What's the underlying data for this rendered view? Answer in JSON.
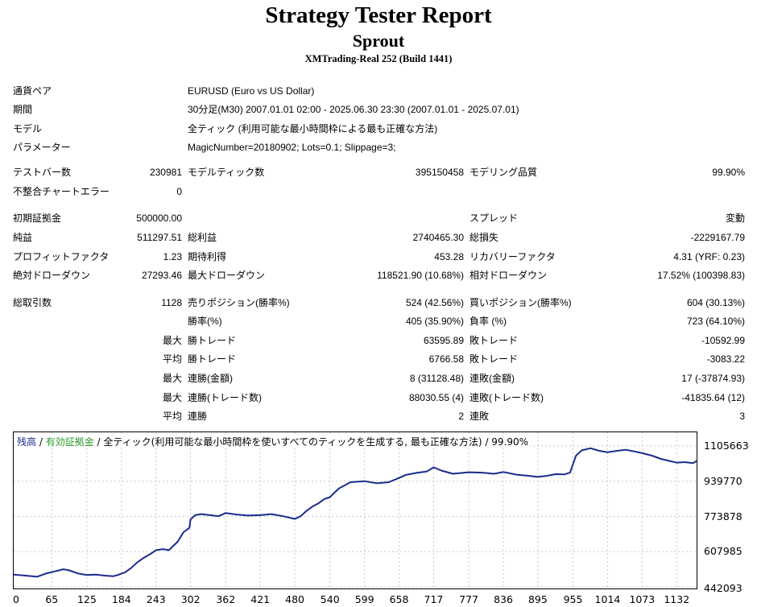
{
  "header": {
    "title": "Strategy Tester Report",
    "ea_name": "Sprout",
    "server": "XMTrading-Real 252 (Build 1441)"
  },
  "info": {
    "pair_label": "通貨ペア",
    "pair_value": "EURUSD (Euro vs US Dollar)",
    "period_label": "期間",
    "period_value": "30分足(M30) 2007.01.01 02:00 - 2025.06.30 23:30 (2007.01.01 - 2025.07.01)",
    "model_label": "モデル",
    "model_value": "全ティック (利用可能な最小時間枠による最も正確な方法)",
    "params_label": "パラメーター",
    "params_value": "MagicNumber=20180902; Lots=0.1; Slippage=3;"
  },
  "stats": {
    "test_bars_label": "テストバー数",
    "test_bars_value": "230981",
    "model_ticks_label": "モデルティック数",
    "model_ticks_value": "395150458",
    "model_quality_label": "モデリング品質",
    "model_quality_value": "99.90%",
    "mismatch_label": "不整合チャートエラー",
    "mismatch_value": "0",
    "initial_deposit_label": "初期証拠金",
    "initial_deposit_value": "500000.00",
    "spread_label": "スプレッド",
    "spread_value": "変動",
    "net_profit_label": "純益",
    "net_profit_value": "511297.51",
    "gross_profit_label": "総利益",
    "gross_profit_value": "2740465.30",
    "gross_loss_label": "総損失",
    "gross_loss_value": "-2229167.79",
    "profit_factor_label": "プロフィットファクタ",
    "profit_factor_value": "1.23",
    "expected_payoff_label": "期待利得",
    "expected_payoff_value": "453.28",
    "recovery_factor_label": "リカバリーファクタ",
    "recovery_factor_value": "4.31 (YRF: 0.23)",
    "abs_dd_label": "絶対ドローダウン",
    "abs_dd_value": "27293.46",
    "max_dd_label": "最大ドローダウン",
    "max_dd_value": "118521.90 (10.68%)",
    "rel_dd_label": "相対ドローダウン",
    "rel_dd_value": "17.52% (100398.83)",
    "total_trades_label": "総取引数",
    "total_trades_value": "1128",
    "short_label": "売りポジション(勝率%)",
    "short_value": "524 (42.56%)",
    "long_label": "買いポジション(勝率%)",
    "long_value": "604 (30.13%)",
    "win_rate_label": "勝率(%)",
    "win_rate_value": "405 (35.90%)",
    "loss_rate_label": "負率 (%)",
    "loss_rate_value": "723 (64.10%)",
    "max_prefix": "最大",
    "avg_prefix": "平均",
    "largest_win_label": "勝トレード",
    "largest_win_value": "63595.89",
    "largest_loss_label": "敗トレード",
    "largest_loss_value": "-10592.99",
    "avg_win_label": "勝トレード",
    "avg_win_value": "6766.58",
    "avg_loss_label": "敗トレード",
    "avg_loss_value": "-3083.22",
    "max_consec_wins_amt_label": "連勝(金額)",
    "max_consec_wins_amt_value": "8 (31128.48)",
    "max_consec_losses_amt_label": "連敗(金額)",
    "max_consec_losses_amt_value": "17 (-37874.93)",
    "max_consec_profit_label": "連勝(トレード数)",
    "max_consec_profit_value": "88030.55 (4)",
    "max_consec_loss_label": "連敗(トレード数)",
    "max_consec_loss_value": "-41835.64 (12)",
    "avg_consec_wins_label": "連勝",
    "avg_consec_wins_value": "2",
    "avg_consec_losses_label": "連敗",
    "avg_consec_losses_value": "3"
  },
  "chart_data": {
    "type": "line",
    "legend": {
      "balance": "残高",
      "equity": "有効証拠金",
      "description": "全ティック(利用可能な最小時間枠を使いすべてのティックを生成する, 最も正確な方法)",
      "quality": "99.90%"
    },
    "colors": {
      "balance": "#1a2a8c",
      "equity": "#2a9a2a",
      "grid": "#c8c8c8"
    },
    "x_ticks": [
      "0",
      "65",
      "125",
      "184",
      "243",
      "302",
      "362",
      "421",
      "480",
      "540",
      "599",
      "658",
      "717",
      "777",
      "836",
      "895",
      "955",
      "1014",
      "1073",
      "1132"
    ],
    "y_ticks": [
      "1105663",
      "939770",
      "773878",
      "607985",
      "442093"
    ],
    "xlim": [
      0,
      1166
    ],
    "ylim": [
      442093,
      1105663
    ],
    "series": [
      {
        "name": "残高",
        "x": [
          0,
          20,
          40,
          55,
          70,
          85,
          95,
          110,
          125,
          140,
          155,
          170,
          180,
          184,
          190,
          200,
          210,
          220,
          235,
          243,
          255,
          265,
          280,
          290,
          300,
          302,
          310,
          320,
          335,
          350,
          362,
          380,
          400,
          421,
          440,
          460,
          480,
          490,
          500,
          510,
          520,
          530,
          540,
          555,
          575,
          599,
          620,
          640,
          658,
          670,
          690,
          705,
          717,
          730,
          750,
          777,
          800,
          820,
          836,
          860,
          880,
          895,
          910,
          925,
          940,
          950,
          955,
          960,
          970,
          985,
          1000,
          1014,
          1030,
          1045,
          1060,
          1073,
          1090,
          1105,
          1120,
          1132,
          1145,
          1160,
          1166
        ],
        "y": [
          500000,
          495000,
          490000,
          505000,
          515000,
          525000,
          520000,
          505000,
          498000,
          500000,
          495000,
          492000,
          500000,
          505000,
          510000,
          530000,
          555000,
          575000,
          600000,
          615000,
          620000,
          615000,
          655000,
          700000,
          720000,
          760000,
          780000,
          785000,
          780000,
          775000,
          790000,
          783000,
          778000,
          780000,
          785000,
          775000,
          762000,
          775000,
          800000,
          820000,
          835000,
          855000,
          865000,
          905000,
          935000,
          940000,
          930000,
          935000,
          955000,
          970000,
          980000,
          985000,
          1005000,
          990000,
          975000,
          982000,
          980000,
          975000,
          983000,
          970000,
          965000,
          960000,
          965000,
          973000,
          972000,
          980000,
          1020000,
          1060000,
          1085000,
          1095000,
          1083000,
          1076000,
          1083000,
          1088000,
          1080000,
          1072000,
          1060000,
          1045000,
          1035000,
          1027000,
          1030000,
          1025000,
          1035000
        ]
      }
    ]
  }
}
